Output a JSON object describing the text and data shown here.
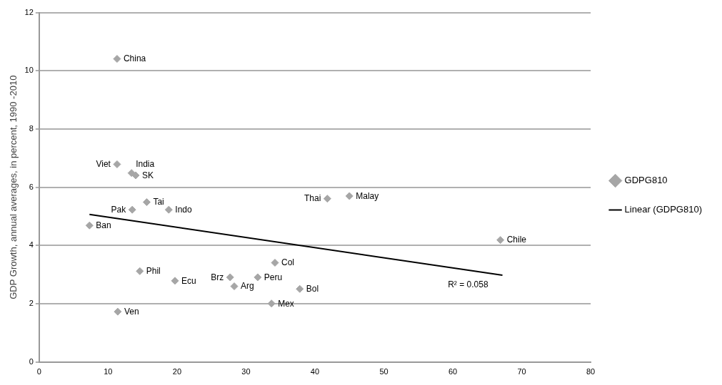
{
  "chart_data": {
    "type": "scatter",
    "ylabel": "GDP Growth, annual averages, in percent, 1990 -2010",
    "xlim": [
      0,
      80
    ],
    "xticks": [
      0,
      10,
      20,
      30,
      40,
      50,
      60,
      70,
      80
    ],
    "ylim": [
      0,
      12
    ],
    "yticks": [
      0,
      2,
      4,
      6,
      8,
      10,
      12
    ],
    "grid": "y",
    "legend": "right",
    "marker": "diamond",
    "series": [
      {
        "name": "GDPG810",
        "type": "scatter",
        "color": "#a6a6a6",
        "x": [
          11.3,
          11.3,
          13.4,
          14.0,
          15.6,
          13.5,
          18.8,
          7.3,
          41.8,
          45.0,
          66.9,
          34.2,
          31.7,
          27.7,
          28.3,
          33.7,
          37.8,
          14.6,
          19.7,
          11.4
        ],
        "values": [
          10.41,
          6.79,
          6.49,
          6.41,
          5.49,
          5.23,
          5.23,
          4.69,
          5.61,
          5.7,
          4.19,
          3.41,
          2.91,
          2.91,
          2.6,
          2.01,
          2.51,
          3.12,
          2.79,
          1.73
        ]
      },
      {
        "name": "Linear (GDPG810)",
        "type": "line",
        "color": "#000000",
        "marker": "none",
        "x": [
          7.3,
          67.2
        ],
        "values": [
          5.07,
          2.98
        ]
      }
    ],
    "annotations": [
      {
        "text": "China",
        "x": 11.3,
        "y": 10.41
      },
      {
        "text": "Viet",
        "x": 11.3,
        "y": 6.79
      },
      {
        "text": "India",
        "x": 13.4,
        "y": 6.49
      },
      {
        "text": "SK",
        "x": 14.0,
        "y": 6.41
      },
      {
        "text": "Tai",
        "x": 15.6,
        "y": 5.49
      },
      {
        "text": "Pak",
        "x": 13.5,
        "y": 5.23
      },
      {
        "text": "Indo",
        "x": 18.8,
        "y": 5.23
      },
      {
        "text": "Ban",
        "x": 7.3,
        "y": 4.69
      },
      {
        "text": "Thai",
        "x": 41.8,
        "y": 5.61
      },
      {
        "text": "Malay",
        "x": 45.0,
        "y": 5.7
      },
      {
        "text": "Chile",
        "x": 66.9,
        "y": 4.19
      },
      {
        "text": "Col",
        "x": 34.2,
        "y": 3.41
      },
      {
        "text": "Peru",
        "x": 31.7,
        "y": 2.91
      },
      {
        "text": "Brz",
        "x": 27.7,
        "y": 2.91
      },
      {
        "text": "Arg",
        "x": 28.3,
        "y": 2.6
      },
      {
        "text": "Mex",
        "x": 33.7,
        "y": 2.01
      },
      {
        "text": "Bol",
        "x": 37.8,
        "y": 2.51
      },
      {
        "text": "Phil",
        "x": 14.6,
        "y": 3.12
      },
      {
        "text": "Ecu",
        "x": 19.7,
        "y": 2.79
      },
      {
        "text": "Ven",
        "x": 11.4,
        "y": 1.73
      },
      "R² = 0.058"
    ]
  }
}
